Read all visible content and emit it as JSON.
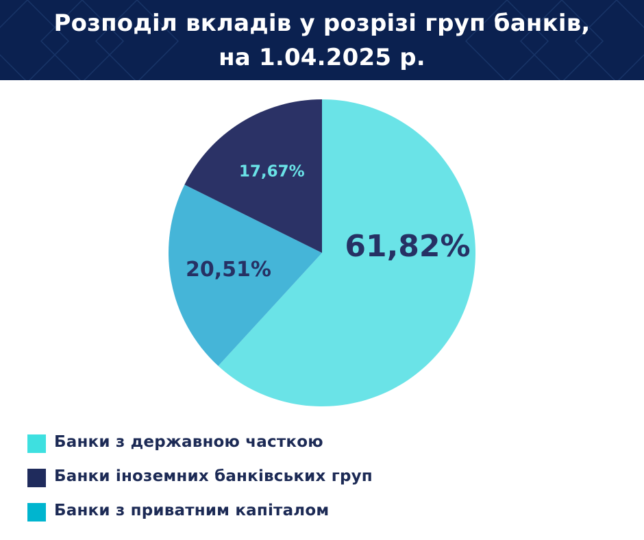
{
  "header": {
    "title_line1": "Розподіл вкладів у розрізі груп банків,",
    "title_line2": "на 1.04.2025 р."
  },
  "chart_data": {
    "type": "pie",
    "title": "Розподіл вкладів у розрізі груп банків, на 1.04.2025 р.",
    "labels": [
      "Банки з державною часткою",
      "Банки з приватним капіталом",
      "Банки іноземних банківських груп"
    ],
    "values": [
      61.82,
      20.51,
      17.67
    ],
    "data_labels": [
      "61,82%",
      "20,51%",
      "17,67%"
    ],
    "colors": [
      "#6ae3e7",
      "#45b5d8",
      "#2b3266"
    ],
    "label_colors": [
      "#263164",
      "#263164",
      "#6ae3e7"
    ],
    "start": "12 o'clock, clockwise",
    "legend_position": "bottom-left"
  },
  "legend": {
    "items": [
      {
        "label": "Банки з державною часткою",
        "color": "#3ee0e0"
      },
      {
        "label": "Банки іноземних банківських груп",
        "color": "#1f2b5c"
      },
      {
        "label": "Банки з приватним капіталом",
        "color": "#00b5cf"
      }
    ]
  }
}
